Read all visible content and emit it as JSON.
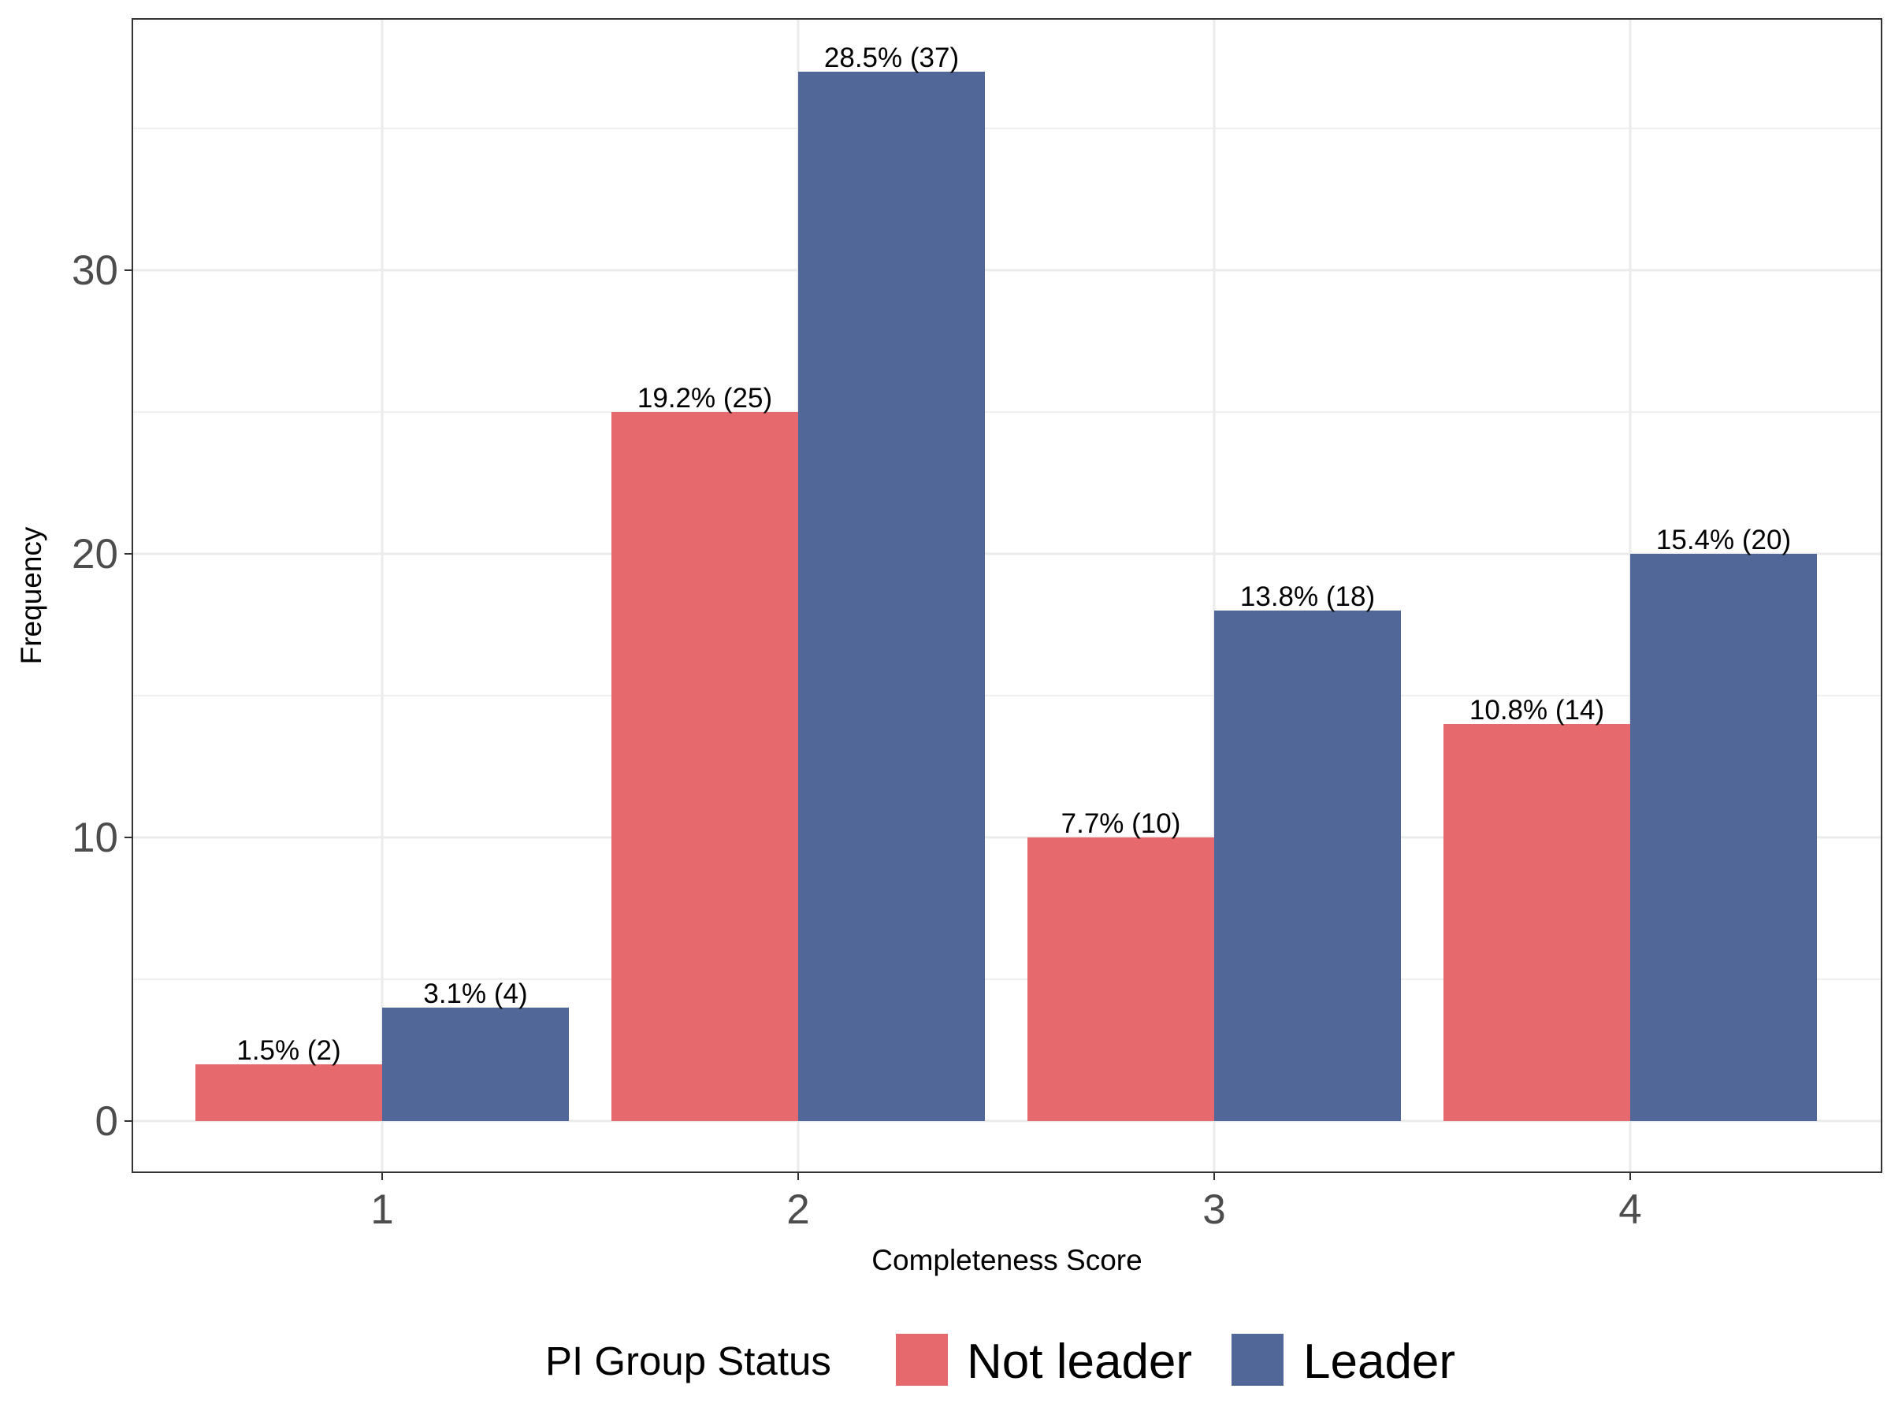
{
  "chart_data": {
    "type": "bar",
    "xlabel": "Completeness Score",
    "ylabel": "Frequency",
    "categories": [
      "1",
      "2",
      "3",
      "4"
    ],
    "ylim": [
      0,
      38.5
    ],
    "yticks": [
      0,
      10,
      20,
      30
    ],
    "grid": true,
    "legend": {
      "title": "PI Group Status",
      "placement": "bottom"
    },
    "series": [
      {
        "name": "Not leader",
        "color": "#e5696d",
        "values": [
          2,
          25,
          10,
          14
        ],
        "labels": [
          "1.5% (2)",
          "19.2% (25)",
          "7.7% (10)",
          "10.8% (14)"
        ]
      },
      {
        "name": "Leader",
        "color": "#516798",
        "values": [
          4,
          37,
          18,
          20
        ],
        "labels": [
          "3.1% (4)",
          "28.5% (37)",
          "13.8% (18)",
          "15.4% (20)"
        ]
      }
    ]
  }
}
